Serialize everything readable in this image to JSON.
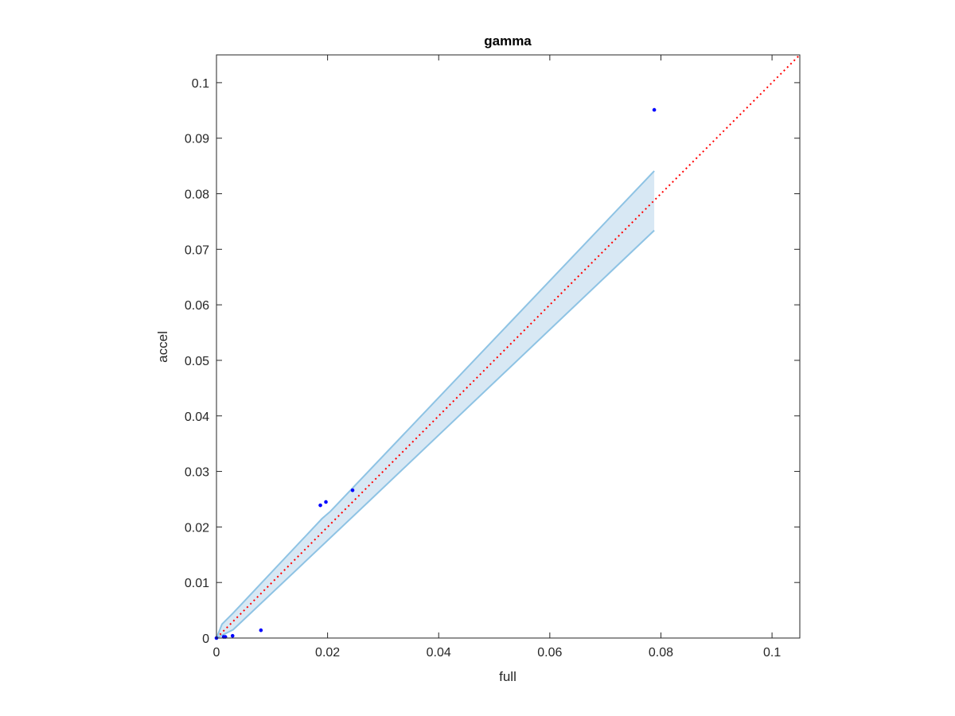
{
  "chart_data": {
    "type": "scatter",
    "title": "gamma",
    "xlabel": "full",
    "ylabel": "accel",
    "xlim": [
      0,
      0.105
    ],
    "ylim": [
      0,
      0.105
    ],
    "xticks": [
      0,
      0.02,
      0.04,
      0.06,
      0.08,
      0.1
    ],
    "xtick_labels": [
      "0",
      "0.02",
      "0.04",
      "0.06",
      "0.08",
      "0.1"
    ],
    "yticks": [
      0,
      0.01,
      0.02,
      0.03,
      0.04,
      0.05,
      0.06,
      0.07,
      0.08,
      0.09,
      0.1
    ],
    "ytick_labels": [
      "0",
      "0.01",
      "0.02",
      "0.03",
      "0.04",
      "0.05",
      "0.06",
      "0.07",
      "0.08",
      "0.09",
      "0.1"
    ],
    "grid": false,
    "points": {
      "color": "#0000ff",
      "x": [
        0,
        0.0013,
        0.0016,
        0.0029,
        0.008,
        0.0187,
        0.0197,
        0.0245,
        0.0788
      ],
      "y": [
        0,
        0.0002,
        0.0002,
        0.0004,
        0.0014,
        0.0239,
        0.0245,
        0.0266,
        0.0951
      ]
    },
    "band": {
      "color": "#8ec3e4",
      "fill": "#d8e8f4",
      "upper": {
        "x": [
          0,
          0.001,
          0.003,
          0.019,
          0.0205,
          0.0788
        ],
        "y": [
          0,
          0.0025,
          0.0045,
          0.0215,
          0.0228,
          0.0841
        ]
      },
      "lower": {
        "x": [
          0,
          0.003,
          0.0269,
          0.0788
        ],
        "y": [
          0,
          0.0015,
          0.0241,
          0.0734
        ]
      }
    },
    "reference_line": {
      "color": "#ff0000",
      "style": "dotted",
      "x": [
        0,
        0.105
      ],
      "y": [
        0,
        0.105
      ]
    }
  }
}
